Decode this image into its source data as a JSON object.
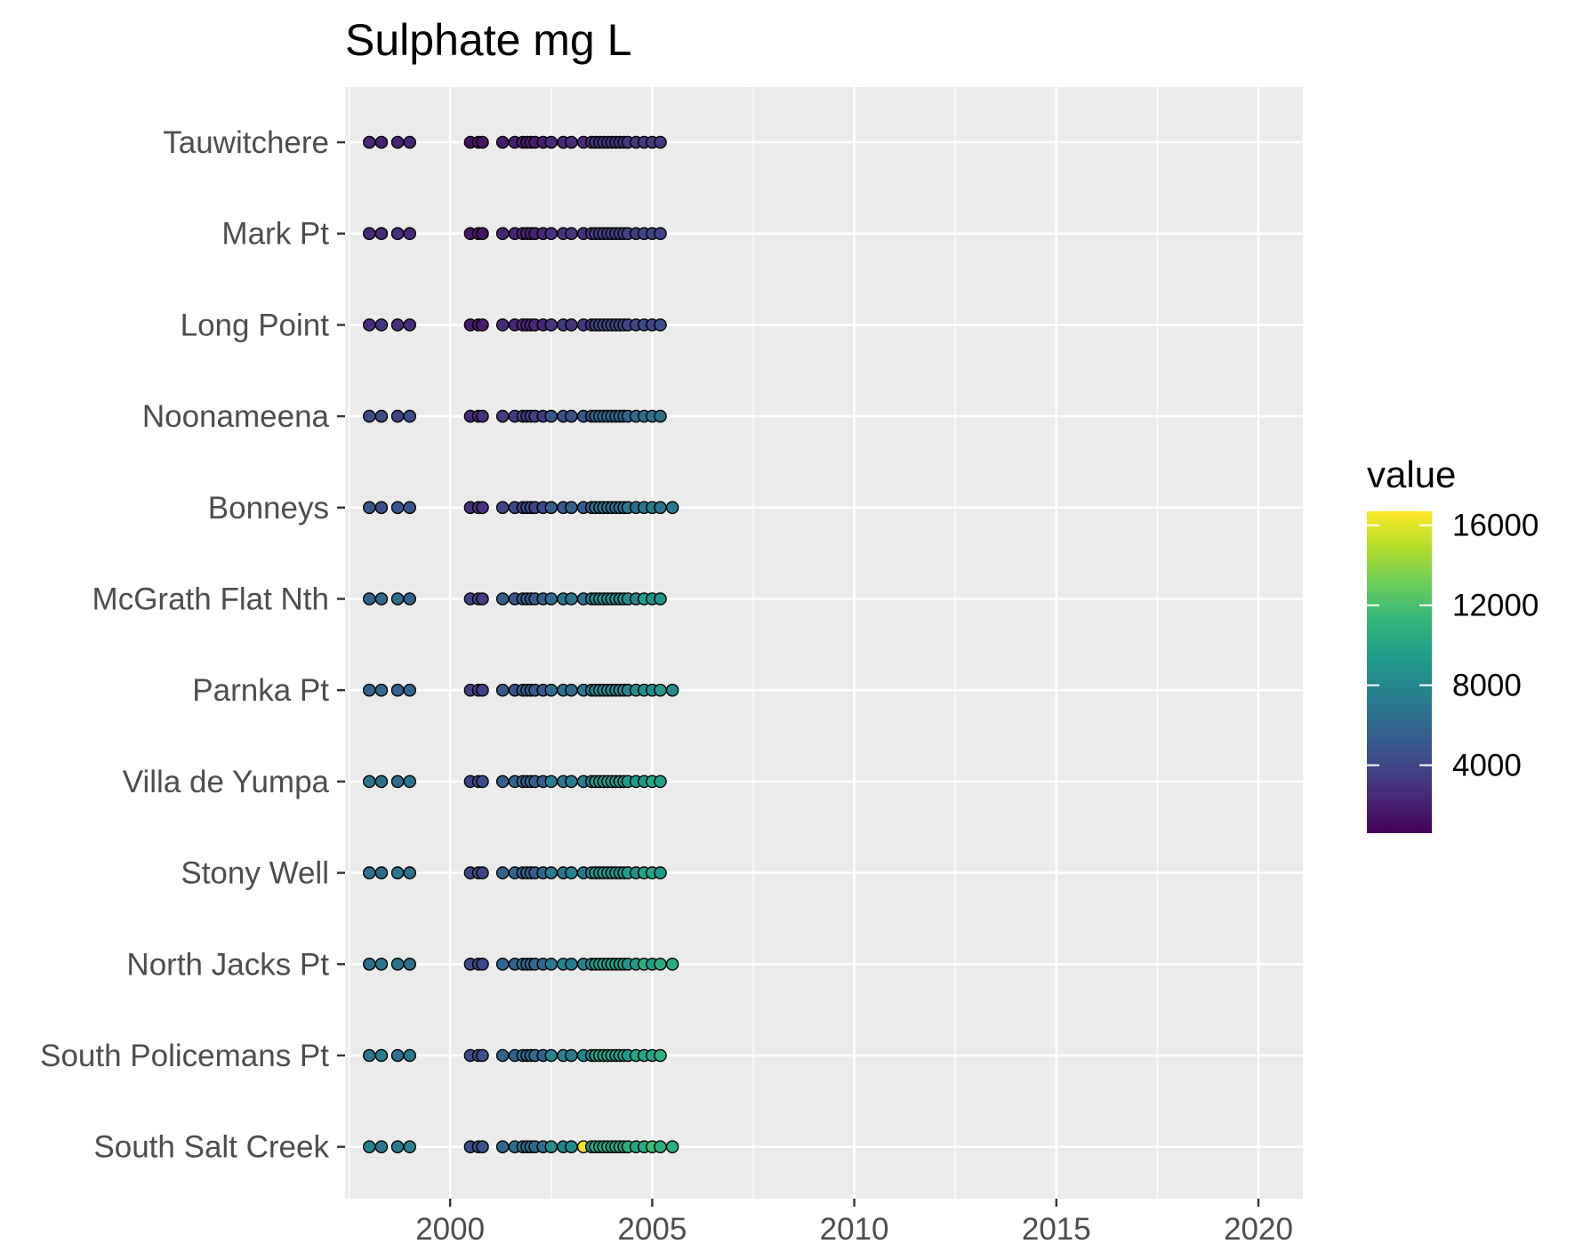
{
  "chart_data": {
    "type": "scatter",
    "title": "Sulphate mg L",
    "xlabel": "",
    "ylabel": "",
    "xlim": [
      1997.4,
      2021.1
    ],
    "x_ticks": [
      2000,
      2005,
      2010,
      2015,
      2020
    ],
    "x_tick_labels": [
      "2000",
      "2005",
      "2010",
      "2015",
      "2020"
    ],
    "sites": [
      "Tauwitchere",
      "Mark Pt",
      "Long Point",
      "Noonameena",
      "Bonneys",
      "McGrath Flat Nth",
      "Parnka Pt",
      "Villa de Yumpa",
      "Stony Well",
      "North Jacks Pt",
      "South Policemans Pt",
      "South Salt Creek"
    ],
    "sample_dates": [
      1998.0,
      1998.3,
      1998.7,
      1999.0,
      2000.5,
      2000.7,
      2000.8,
      2001.3,
      2001.6,
      2001.8,
      2001.9,
      2002.0,
      2002.1,
      2002.3,
      2002.5,
      2002.8,
      2003.0,
      2003.3,
      2003.5,
      2003.6,
      2003.7,
      2003.8,
      2003.9,
      2004.0,
      2004.1,
      2004.2,
      2004.3,
      2004.4,
      2004.6,
      2004.8,
      2005.0,
      2005.2
    ],
    "extra_last_date": 2005.5,
    "extra_last_sites": [
      "Bonneys",
      "Parnka Pt",
      "North Jacks Pt",
      "South Salt Creek"
    ],
    "site_level": [
      2200,
      2600,
      2800,
      4200,
      4700,
      6000,
      5800,
      6500,
      6500,
      6800,
      6900,
      7300
    ],
    "color_scale": {
      "type": "viridis",
      "domain": [
        600,
        16700
      ],
      "stops": [
        "#440154",
        "#482878",
        "#3E4A89",
        "#31688E",
        "#26828E",
        "#1F9E89",
        "#35B779",
        "#6DCD59",
        "#B4DE2C",
        "#FDE725"
      ]
    },
    "legend": {
      "title": "value",
      "ticks": [
        4000,
        8000,
        12000,
        16000
      ],
      "tick_labels": [
        "4000",
        "8000",
        "12000",
        "16000"
      ],
      "placement": "right"
    },
    "grid": true,
    "panel_color": "#ebebeb"
  }
}
